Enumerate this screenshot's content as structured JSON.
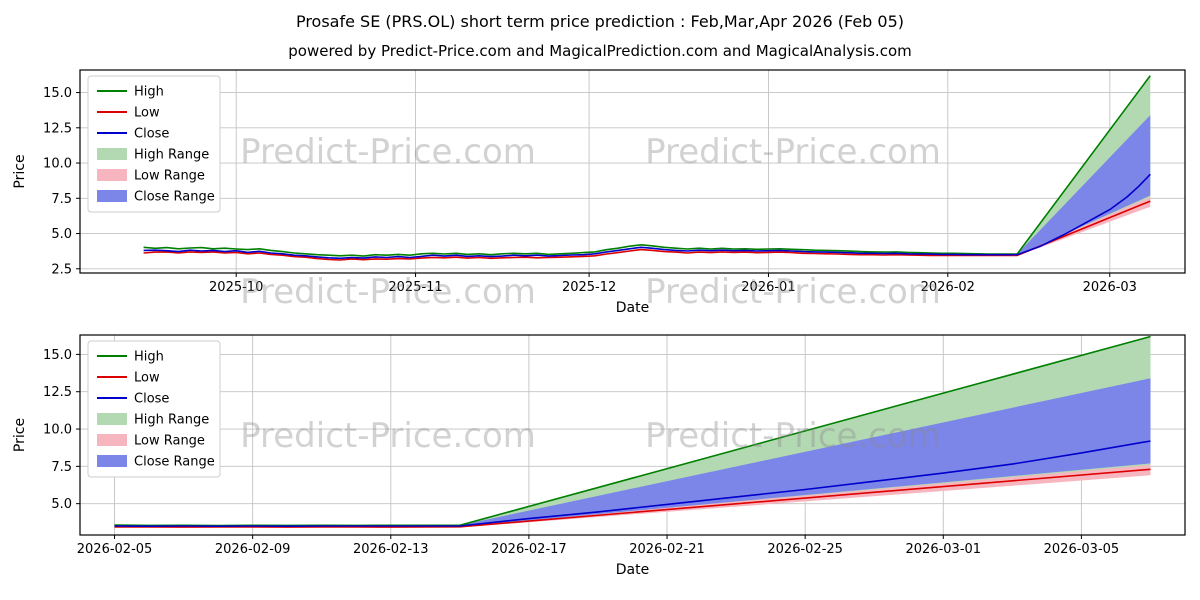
{
  "header": {
    "title": "Prosafe SE (PRS.OL) short term price prediction : Feb,Mar,Apr 2026 (Feb 05)",
    "subtitle": "powered by Predict-Price.com and MagicalPrediction.com and MagicalAnalysis.com"
  },
  "watermark": {
    "text": "Predict-Price.com"
  },
  "colors": {
    "high": "#008000",
    "low": "#dd0000",
    "close": "#0000cc",
    "high_range": "#b3d9b3",
    "low_range": "#f7b6bf",
    "close_range": "#7b86e8",
    "grid": "#c3c3c3",
    "axis": "#000000"
  },
  "chart_data": [
    {
      "type": "line",
      "name": "full-history-with-forecast",
      "xlabel": "Date",
      "ylabel": "Price",
      "xlim": [
        3,
        194
      ],
      "ylim": [
        2.2,
        16.6
      ],
      "xticks": [
        {
          "v": 30,
          "label": "2025-10"
        },
        {
          "v": 61,
          "label": "2025-11"
        },
        {
          "v": 91,
          "label": "2025-12"
        },
        {
          "v": 122,
          "label": "2026-01"
        },
        {
          "v": 153,
          "label": "2026-02"
        },
        {
          "v": 181,
          "label": "2026-03"
        }
      ],
      "yticks": [
        2.5,
        5.0,
        7.5,
        10.0,
        12.5,
        15.0
      ],
      "history": [
        [
          14,
          4.02,
          3.62,
          3.8
        ],
        [
          16,
          3.95,
          3.68,
          3.82
        ],
        [
          18,
          4.0,
          3.7,
          3.78
        ],
        [
          20,
          3.92,
          3.62,
          3.72
        ],
        [
          22,
          3.97,
          3.7,
          3.82
        ],
        [
          24,
          4.0,
          3.66,
          3.76
        ],
        [
          26,
          3.92,
          3.7,
          3.8
        ],
        [
          28,
          3.96,
          3.62,
          3.72
        ],
        [
          30,
          3.9,
          3.66,
          3.78
        ],
        [
          32,
          3.86,
          3.56,
          3.66
        ],
        [
          34,
          3.92,
          3.62,
          3.74
        ],
        [
          36,
          3.8,
          3.52,
          3.62
        ],
        [
          38,
          3.72,
          3.46,
          3.56
        ],
        [
          40,
          3.62,
          3.36,
          3.46
        ],
        [
          42,
          3.56,
          3.32,
          3.42
        ],
        [
          44,
          3.5,
          3.22,
          3.34
        ],
        [
          46,
          3.46,
          3.16,
          3.28
        ],
        [
          48,
          3.42,
          3.12,
          3.24
        ],
        [
          50,
          3.46,
          3.2,
          3.3
        ],
        [
          52,
          3.4,
          3.14,
          3.26
        ],
        [
          54,
          3.5,
          3.2,
          3.34
        ],
        [
          56,
          3.46,
          3.18,
          3.3
        ],
        [
          58,
          3.52,
          3.22,
          3.36
        ],
        [
          60,
          3.46,
          3.2,
          3.3
        ],
        [
          62,
          3.56,
          3.26,
          3.38
        ],
        [
          64,
          3.6,
          3.3,
          3.46
        ],
        [
          66,
          3.55,
          3.28,
          3.4
        ],
        [
          68,
          3.6,
          3.32,
          3.46
        ],
        [
          70,
          3.52,
          3.26,
          3.38
        ],
        [
          72,
          3.56,
          3.3,
          3.42
        ],
        [
          74,
          3.5,
          3.24,
          3.36
        ],
        [
          76,
          3.56,
          3.28,
          3.4
        ],
        [
          78,
          3.6,
          3.3,
          3.46
        ],
        [
          80,
          3.56,
          3.32,
          3.42
        ],
        [
          82,
          3.6,
          3.28,
          3.46
        ],
        [
          84,
          3.52,
          3.3,
          3.4
        ],
        [
          86,
          3.56,
          3.32,
          3.44
        ],
        [
          88,
          3.6,
          3.35,
          3.48
        ],
        [
          90,
          3.65,
          3.38,
          3.5
        ],
        [
          92,
          3.7,
          3.42,
          3.56
        ],
        [
          94,
          3.85,
          3.55,
          3.7
        ],
        [
          96,
          3.96,
          3.65,
          3.8
        ],
        [
          98,
          4.1,
          3.76,
          3.92
        ],
        [
          100,
          4.2,
          3.86,
          4.02
        ],
        [
          102,
          4.12,
          3.8,
          3.95
        ],
        [
          104,
          4.02,
          3.72,
          3.86
        ],
        [
          106,
          3.96,
          3.68,
          3.8
        ],
        [
          108,
          3.9,
          3.62,
          3.76
        ],
        [
          110,
          3.96,
          3.68,
          3.82
        ],
        [
          112,
          3.9,
          3.65,
          3.78
        ],
        [
          114,
          3.95,
          3.7,
          3.82
        ],
        [
          116,
          3.9,
          3.66,
          3.78
        ],
        [
          118,
          3.92,
          3.68,
          3.8
        ],
        [
          120,
          3.88,
          3.64,
          3.76
        ],
        [
          122,
          3.9,
          3.66,
          3.78
        ],
        [
          124,
          3.92,
          3.68,
          3.8
        ],
        [
          126,
          3.88,
          3.65,
          3.76
        ],
        [
          128,
          3.85,
          3.6,
          3.72
        ],
        [
          130,
          3.82,
          3.58,
          3.7
        ],
        [
          132,
          3.8,
          3.56,
          3.68
        ],
        [
          134,
          3.78,
          3.55,
          3.66
        ],
        [
          136,
          3.75,
          3.52,
          3.64
        ],
        [
          138,
          3.72,
          3.5,
          3.6
        ],
        [
          140,
          3.7,
          3.5,
          3.6
        ],
        [
          142,
          3.68,
          3.48,
          3.58
        ],
        [
          144,
          3.7,
          3.5,
          3.6
        ],
        [
          146,
          3.66,
          3.48,
          3.56
        ],
        [
          148,
          3.64,
          3.46,
          3.55
        ],
        [
          150,
          3.62,
          3.45,
          3.54
        ],
        [
          152,
          3.6,
          3.45,
          3.52
        ],
        [
          154,
          3.6,
          3.44,
          3.52
        ],
        [
          156,
          3.58,
          3.44,
          3.5
        ],
        [
          158,
          3.56,
          3.44,
          3.5
        ],
        [
          160,
          3.55,
          3.44,
          3.5
        ],
        [
          162,
          3.55,
          3.45,
          3.5
        ],
        [
          164,
          3.55,
          3.45,
          3.5
        ],
        [
          165,
          3.55,
          3.45,
          3.5
        ]
      ],
      "bands": [
        {
          "name": "High Range",
          "color_key": "high_range",
          "hi": [
            [
              165,
              3.55
            ],
            [
              188,
              16.2
            ]
          ],
          "lo": [
            [
              165,
              3.45
            ],
            [
              188,
              7.2
            ]
          ]
        },
        {
          "name": "Low Range",
          "color_key": "low_range",
          "hi": [
            [
              165,
              3.5
            ],
            [
              188,
              7.6
            ]
          ],
          "lo": [
            [
              165,
              3.4
            ],
            [
              188,
              6.9
            ]
          ]
        },
        {
          "name": "Close Range",
          "color_key": "close_range",
          "hi": [
            [
              165,
              3.55
            ],
            [
              188,
              13.4
            ]
          ],
          "lo": [
            [
              165,
              3.45
            ],
            [
              188,
              7.7
            ]
          ]
        }
      ],
      "series": [
        {
          "name": "High",
          "color_key": "high",
          "hist_col": 1,
          "forecast": [
            [
              165,
              3.55
            ],
            [
              188,
              16.2
            ]
          ]
        },
        {
          "name": "Low",
          "color_key": "low",
          "hist_col": 2,
          "forecast": [
            [
              165,
              3.45
            ],
            [
              188,
              7.3
            ]
          ]
        },
        {
          "name": "Close",
          "color_key": "close",
          "hist_col": 3,
          "forecast": [
            [
              165,
              3.5
            ],
            [
              169,
              4.1
            ],
            [
              173,
              4.9
            ],
            [
              177,
              5.8
            ],
            [
              181,
              6.7
            ],
            [
              184,
              7.6
            ],
            [
              186,
              8.35
            ],
            [
              188,
              9.2
            ]
          ]
        }
      ],
      "legend": [
        {
          "label": "High",
          "swatch": "line",
          "color_key": "high"
        },
        {
          "label": "Low",
          "swatch": "line",
          "color_key": "low"
        },
        {
          "label": "Close",
          "swatch": "line",
          "color_key": "close"
        },
        {
          "label": "High Range",
          "swatch": "band",
          "color_key": "high_range"
        },
        {
          "label": "Low Range",
          "swatch": "band",
          "color_key": "low_range"
        },
        {
          "label": "Close Range",
          "swatch": "band",
          "color_key": "close_range"
        }
      ]
    },
    {
      "type": "line",
      "name": "forecast-zoom",
      "xlabel": "Date",
      "ylabel": "Price",
      "xlim": [
        -1,
        31
      ],
      "ylim": [
        2.9,
        16.3
      ],
      "xticks": [
        {
          "v": 0,
          "label": "2026-02-05"
        },
        {
          "v": 4,
          "label": "2026-02-09"
        },
        {
          "v": 8,
          "label": "2026-02-13"
        },
        {
          "v": 12,
          "label": "2026-02-17"
        },
        {
          "v": 16,
          "label": "2026-02-21"
        },
        {
          "v": 20,
          "label": "2026-02-25"
        },
        {
          "v": 24,
          "label": "2026-03-01"
        },
        {
          "v": 28,
          "label": "2026-03-05"
        }
      ],
      "yticks": [
        5.0,
        7.5,
        10.0,
        12.5,
        15.0
      ],
      "history": [
        [
          0,
          3.56,
          3.44,
          3.5
        ],
        [
          1,
          3.54,
          3.44,
          3.49
        ],
        [
          2,
          3.55,
          3.43,
          3.5
        ],
        [
          3,
          3.53,
          3.44,
          3.49
        ],
        [
          4,
          3.55,
          3.44,
          3.5
        ],
        [
          5,
          3.54,
          3.43,
          3.49
        ],
        [
          6,
          3.55,
          3.44,
          3.5
        ],
        [
          7,
          3.54,
          3.44,
          3.5
        ],
        [
          8,
          3.55,
          3.43,
          3.5
        ],
        [
          9,
          3.55,
          3.44,
          3.5
        ],
        [
          10,
          3.55,
          3.45,
          3.5
        ]
      ],
      "bands": [
        {
          "name": "High Range",
          "color_key": "high_range",
          "hi": [
            [
              10,
              3.55
            ],
            [
              30,
              16.2
            ]
          ],
          "lo": [
            [
              10,
              3.45
            ],
            [
              30,
              7.2
            ]
          ]
        },
        {
          "name": "Low Range",
          "color_key": "low_range",
          "hi": [
            [
              10,
              3.5
            ],
            [
              30,
              7.6
            ]
          ],
          "lo": [
            [
              10,
              3.4
            ],
            [
              30,
              6.9
            ]
          ]
        },
        {
          "name": "Close Range",
          "color_key": "close_range",
          "hi": [
            [
              10,
              3.55
            ],
            [
              30,
              13.4
            ]
          ],
          "lo": [
            [
              10,
              3.45
            ],
            [
              30,
              7.7
            ]
          ]
        }
      ],
      "series": [
        {
          "name": "High",
          "color_key": "high",
          "hist_col": 1,
          "forecast": [
            [
              10,
              3.55
            ],
            [
              30,
              16.2
            ]
          ]
        },
        {
          "name": "Low",
          "color_key": "low",
          "hist_col": 2,
          "forecast": [
            [
              10,
              3.45
            ],
            [
              30,
              7.3
            ]
          ]
        },
        {
          "name": "Close",
          "color_key": "close",
          "hist_col": 3,
          "forecast": [
            [
              10,
              3.5
            ],
            [
              12,
              4.0
            ],
            [
              14,
              4.45
            ],
            [
              16,
              4.95
            ],
            [
              18,
              5.45
            ],
            [
              20,
              5.95
            ],
            [
              22,
              6.5
            ],
            [
              24,
              7.05
            ],
            [
              26,
              7.65
            ],
            [
              28,
              8.4
            ],
            [
              30,
              9.2
            ]
          ]
        }
      ],
      "legend": [
        {
          "label": "High",
          "swatch": "line",
          "color_key": "high"
        },
        {
          "label": "Low",
          "swatch": "line",
          "color_key": "low"
        },
        {
          "label": "Close",
          "swatch": "line",
          "color_key": "close"
        },
        {
          "label": "High Range",
          "swatch": "band",
          "color_key": "high_range"
        },
        {
          "label": "Low Range",
          "swatch": "band",
          "color_key": "low_range"
        },
        {
          "label": "Close Range",
          "swatch": "band",
          "color_key": "close_range"
        }
      ]
    }
  ]
}
